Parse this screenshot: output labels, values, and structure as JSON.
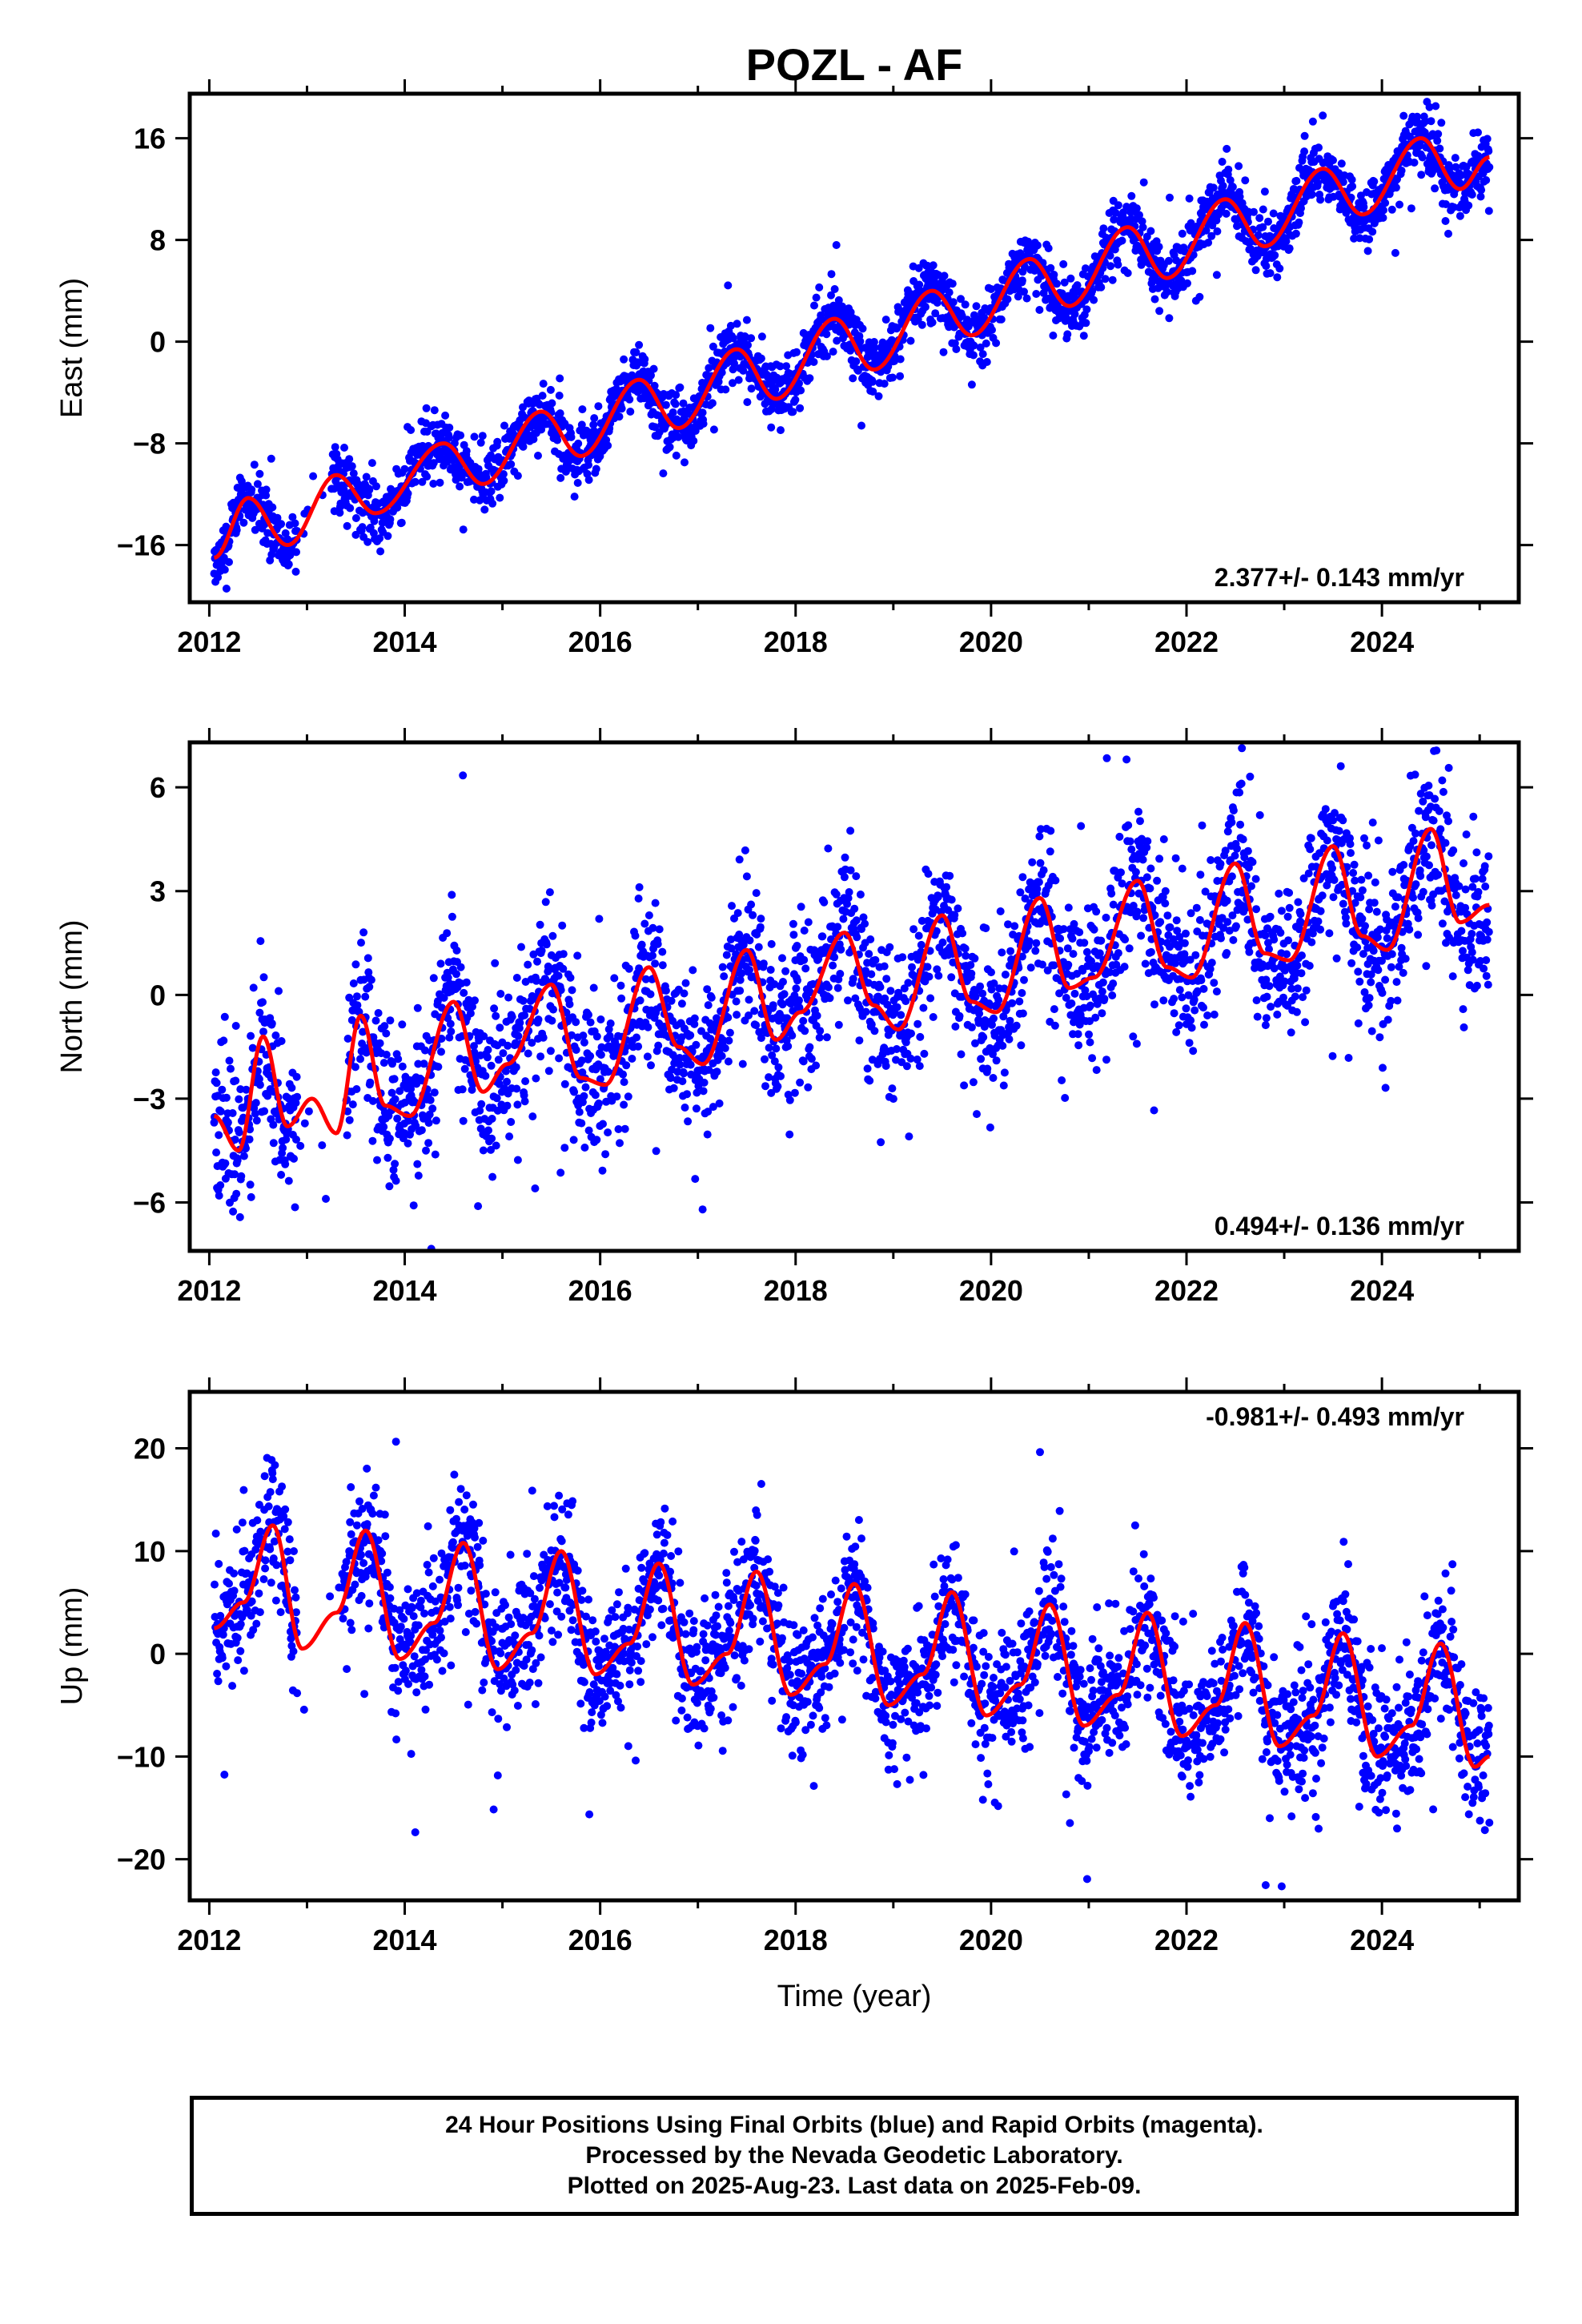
{
  "title": "POZL - AF",
  "caption": [
    "24 Hour Positions Using Final Orbits (blue) and Rapid Orbits (magenta).",
    "Processed by the Nevada Geodetic Laboratory.",
    "Plotted on 2025-Aug-23. Last data on 2025-Feb-09."
  ],
  "colors": {
    "points": "#0000ff",
    "fit": "#ff0000",
    "frame": "#000000"
  },
  "chart_data": [
    {
      "type": "scatter",
      "ylabel": "East (mm)",
      "xlabel": "",
      "xlim": [
        2011.8,
        2025.4
      ],
      "ylim": [
        -20.5,
        19.5
      ],
      "x_ticks": [
        2012,
        2014,
        2016,
        2018,
        2020,
        2022,
        2024
      ],
      "y_ticks": [
        16,
        8,
        0,
        -8,
        -16
      ],
      "y_tick_labels": [
        "16",
        "8",
        "0",
        "−8",
        "−16"
      ],
      "rate_label": "2.377+/- 0.143 mm/yr",
      "rate_position": "bottom-right",
      "trend": {
        "start_year": 2012.05,
        "start_value": -17.0,
        "rate": 2.377,
        "seasonal_amplitude": 2.0,
        "peak_phase": 0.42,
        "scatter": 1.2
      },
      "data_gap": [
        2012.9,
        2013.25
      ],
      "series": [
        {
          "name": "",
          "fit_x": [
            2012.05,
            2012.4,
            2012.8,
            2013.3,
            2013.7,
            2014.4,
            2014.8,
            2015.4,
            2015.8,
            2016.4,
            2016.8,
            2017.4,
            2017.8,
            2018.4,
            2018.8,
            2019.4,
            2019.8,
            2020.4,
            2020.8,
            2021.4,
            2021.8,
            2022.4,
            2022.8,
            2023.4,
            2023.8,
            2024.4,
            2024.8,
            2025.1
          ],
          "fit_y": [
            -17.0,
            -12.3,
            -16.0,
            -10.5,
            -13.5,
            -8.0,
            -11.2,
            -5.5,
            -9.0,
            -3.0,
            -6.8,
            -0.6,
            -4.5,
            1.8,
            -2.2,
            4.0,
            0.5,
            6.5,
            2.8,
            9.0,
            5.0,
            11.2,
            7.5,
            13.6,
            10.0,
            16.0,
            12.0,
            14.5
          ]
        }
      ]
    },
    {
      "type": "scatter",
      "ylabel": "North (mm)",
      "xlabel": "",
      "xlim": [
        2011.8,
        2025.4
      ],
      "ylim": [
        -7.4,
        7.3
      ],
      "x_ticks": [
        2012,
        2014,
        2016,
        2018,
        2020,
        2022,
        2024
      ],
      "y_ticks": [
        6,
        3,
        0,
        -3,
        -6
      ],
      "y_tick_labels": [
        "6",
        "3",
        "0",
        "−3",
        "−6"
      ],
      "rate_label": "0.494+/- 0.136 mm/yr",
      "rate_position": "bottom-right",
      "trend": {
        "start_year": 2012.05,
        "start_value": -3.5,
        "rate": 0.494,
        "seasonal_amplitude": 1.4,
        "peak_phase": 0.5,
        "scatter": 1.1
      },
      "data_gap": [
        2012.9,
        2013.4
      ],
      "series": [
        {
          "name": "",
          "fit_x": [
            2012.05,
            2012.3,
            2012.55,
            2012.8,
            2013.05,
            2013.3,
            2013.55,
            2013.8,
            2014.05,
            2014.5,
            2014.8,
            2015.05,
            2015.5,
            2015.8,
            2016.05,
            2016.5,
            2016.8,
            2017.05,
            2017.5,
            2017.8,
            2018.05,
            2018.5,
            2018.8,
            2019.05,
            2019.5,
            2019.8,
            2020.05,
            2020.5,
            2020.8,
            2021.05,
            2021.5,
            2021.8,
            2022.05,
            2022.5,
            2022.8,
            2023.05,
            2023.5,
            2023.8,
            2024.05,
            2024.5,
            2024.8,
            2025.1
          ],
          "fit_y": [
            -3.5,
            -4.5,
            -1.2,
            -3.8,
            -3.0,
            -4.0,
            -0.6,
            -3.2,
            -3.5,
            -0.2,
            -2.8,
            -2.0,
            0.3,
            -2.4,
            -2.6,
            0.8,
            -1.5,
            -2.0,
            1.3,
            -1.3,
            -0.5,
            1.8,
            -0.3,
            -1.0,
            2.3,
            -0.2,
            -0.5,
            2.8,
            0.2,
            0.5,
            3.3,
            0.8,
            0.5,
            3.8,
            1.2,
            1.0,
            4.3,
            1.7,
            1.3,
            4.8,
            2.1,
            2.6
          ]
        }
      ]
    },
    {
      "type": "scatter",
      "ylabel": "Up (mm)",
      "xlabel": "Time (year)",
      "xlim": [
        2011.8,
        2025.4
      ],
      "ylim": [
        -24,
        25.5
      ],
      "x_ticks": [
        2012,
        2014,
        2016,
        2018,
        2020,
        2022,
        2024
      ],
      "y_ticks": [
        20,
        10,
        0,
        -10,
        -20
      ],
      "y_tick_labels": [
        "20",
        "10",
        "0",
        "−10",
        "−20"
      ],
      "rate_label": "-0.981+/- 0.493 mm/yr",
      "rate_position": "top-right",
      "trend": {
        "start_year": 2012.05,
        "start_value": 2.5,
        "rate": -0.981,
        "seasonal_amplitude": 6.5,
        "peak_phase": 0.6,
        "scatter": 3.2
      },
      "data_gap": [
        2012.9,
        2013.35
      ],
      "series": [
        {
          "name": "",
          "fit_x": [
            2012.05,
            2012.35,
            2012.65,
            2012.95,
            2013.3,
            2013.6,
            2013.95,
            2014.3,
            2014.6,
            2014.95,
            2015.3,
            2015.6,
            2015.95,
            2016.3,
            2016.6,
            2016.95,
            2017.3,
            2017.6,
            2017.95,
            2018.3,
            2018.6,
            2018.95,
            2019.3,
            2019.6,
            2019.95,
            2020.3,
            2020.6,
            2020.95,
            2021.3,
            2021.6,
            2021.95,
            2022.3,
            2022.6,
            2022.95,
            2023.3,
            2023.6,
            2023.95,
            2024.3,
            2024.6,
            2024.95,
            2025.1
          ],
          "fit_y": [
            2.5,
            5.0,
            12.5,
            0.5,
            4.0,
            12.0,
            -0.5,
            3.0,
            10.8,
            -1.5,
            2.0,
            10.0,
            -2.0,
            1.0,
            8.8,
            -3.0,
            0.0,
            8.0,
            -4.0,
            -1.0,
            6.8,
            -5.0,
            -2.0,
            6.0,
            -6.0,
            -3.0,
            4.8,
            -7.0,
            -4.0,
            4.0,
            -8.0,
            -5.0,
            3.0,
            -9.0,
            -6.0,
            2.0,
            -10.0,
            -7.0,
            1.0,
            -11.0,
            -10.0
          ]
        }
      ]
    }
  ]
}
